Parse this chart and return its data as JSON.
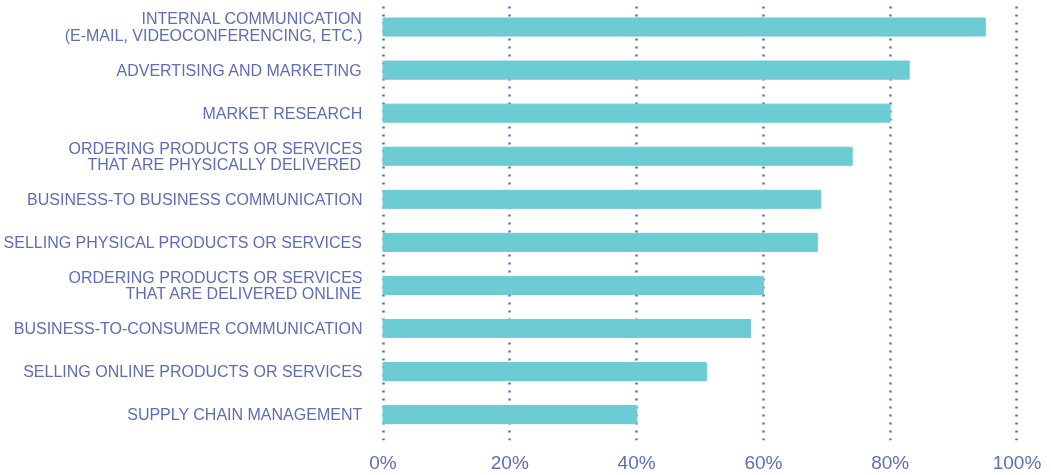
{
  "chart_data": {
    "type": "bar",
    "orientation": "horizontal",
    "categories": [
      "INTERNAL COMMUNICATION\n(E-MAIL, VIDEOCONFERENCING, ETC.)",
      "ADVERTISING AND MARKETING",
      "MARKET RESEARCH",
      "ORDERING PRODUCTS OR SERVICES\nTHAT ARE PHYSICALLY DELIVERED",
      "BUSINESS-TO BUSINESS COMMUNICATION",
      "SELLING PHYSICAL PRODUCTS OR SERVICES",
      "ORDERING PRODUCTS OR SERVICES\nTHAT ARE DELIVERED ONLINE",
      "BUSINESS-TO-CONSUMER COMMUNICATION",
      "SELLING ONLINE PRODUCTS OR SERVICES",
      "SUPPLY CHAIN MANAGEMENT"
    ],
    "values": [
      95,
      83,
      80,
      74,
      69,
      68.5,
      60,
      58,
      51,
      40
    ],
    "color": "#6ccbd3",
    "xlim": [
      0,
      100
    ],
    "xticks": [
      {
        "value": 0,
        "label": "0%"
      },
      {
        "value": 20,
        "label": "20%"
      },
      {
        "value": 40,
        "label": "40%"
      },
      {
        "value": 60,
        "label": "60%"
      },
      {
        "value": 80,
        "label": "80%"
      },
      {
        "value": 100,
        "label": "100%"
      }
    ],
    "grid": "x"
  }
}
